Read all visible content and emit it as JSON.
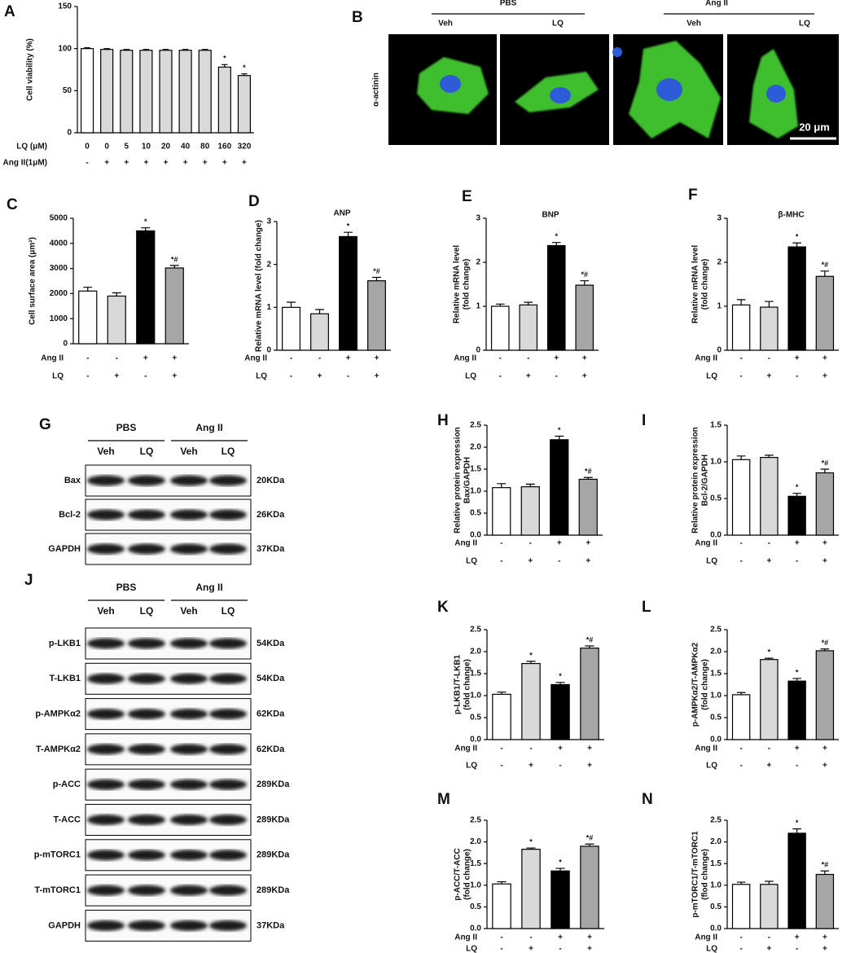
{
  "chart_data": [
    {
      "type": "bar",
      "panel": "A",
      "ylabel": [
        "Cell viability (%)"
      ],
      "ylim": [
        0,
        150
      ],
      "yticks": [
        0,
        50,
        100,
        150
      ],
      "values": [
        100,
        99,
        98,
        98,
        98,
        98,
        98,
        78,
        68
      ],
      "errors": [
        1,
        1,
        1,
        1,
        1,
        1,
        1,
        3,
        2
      ],
      "annotations": [
        null,
        null,
        null,
        null,
        null,
        null,
        null,
        "*",
        "*"
      ],
      "colors": [
        "#ffffff",
        "#d9d9d9",
        "#d9d9d9",
        "#d9d9d9",
        "#d9d9d9",
        "#d9d9d9",
        "#d9d9d9",
        "#d9d9d9",
        "#d9d9d9"
      ],
      "conditions": [
        {
          "name": "LQ (μM)",
          "values": [
            0,
            0,
            5,
            10,
            20,
            40,
            80,
            160,
            320
          ]
        },
        {
          "name": "Ang II(1μM)",
          "values": [
            "-",
            "+",
            "+",
            "+",
            "+",
            "+",
            "+",
            "+",
            "+"
          ]
        }
      ]
    },
    {
      "type": "bar",
      "panel": "C",
      "ylabel": [
        "Cell surface area (μm²)"
      ],
      "ylim": [
        0,
        5000
      ],
      "yticks": [
        0,
        1000,
        2000,
        3000,
        4000,
        5000
      ],
      "values": [
        2100,
        1900,
        4500,
        3020
      ],
      "errors": [
        150,
        130,
        120,
        100
      ],
      "annotations": [
        null,
        null,
        "*",
        "*#"
      ],
      "colors": [
        "#ffffff",
        "#d9d9d9",
        "#000000",
        "#a6a6a6"
      ],
      "conditions": [
        {
          "name": "Ang II",
          "values": [
            "-",
            "-",
            "+",
            "+"
          ]
        },
        {
          "name": "LQ",
          "values": [
            "-",
            "+",
            "-",
            "+"
          ]
        }
      ]
    },
    {
      "type": "bar",
      "panel": "D",
      "title": "ANP",
      "ylabel": [
        "Relative mRNA level (fold change)"
      ],
      "ylim": [
        0,
        3
      ],
      "yticks": [
        0,
        1,
        2,
        3
      ],
      "values": [
        1.0,
        0.85,
        2.65,
        1.62
      ],
      "errors": [
        0.12,
        0.1,
        0.1,
        0.08
      ],
      "annotations": [
        null,
        null,
        "*",
        "*#"
      ],
      "colors": [
        "#ffffff",
        "#d9d9d9",
        "#000000",
        "#a6a6a6"
      ],
      "conditions": [
        {
          "name": "Ang II",
          "values": [
            "-",
            "-",
            "+",
            "+"
          ]
        },
        {
          "name": "LQ",
          "values": [
            "-",
            "+",
            "-",
            "+"
          ]
        }
      ]
    },
    {
      "type": "bar",
      "panel": "E",
      "title": "BNP",
      "ylabel": [
        "Relative mRNA level",
        "(fold change)"
      ],
      "ylim": [
        0,
        3
      ],
      "yticks": [
        0,
        1,
        2,
        3
      ],
      "values": [
        1.0,
        1.03,
        2.38,
        1.48
      ],
      "errors": [
        0.05,
        0.06,
        0.07,
        0.1
      ],
      "annotations": [
        null,
        null,
        "*",
        "*#"
      ],
      "colors": [
        "#ffffff",
        "#d9d9d9",
        "#000000",
        "#a6a6a6"
      ],
      "conditions": [
        {
          "name": "Ang II",
          "values": [
            "-",
            "-",
            "+",
            "+"
          ]
        },
        {
          "name": "LQ",
          "values": [
            "-",
            "+",
            "-",
            "+"
          ]
        }
      ]
    },
    {
      "type": "bar",
      "panel": "F",
      "title": "β-MHC",
      "ylabel": [
        "Relative mRNA level",
        "(fold change)"
      ],
      "ylim": [
        0,
        3
      ],
      "yticks": [
        0,
        1,
        2,
        3
      ],
      "values": [
        1.03,
        0.98,
        2.35,
        1.68
      ],
      "errors": [
        0.12,
        0.13,
        0.09,
        0.12
      ],
      "annotations": [
        null,
        null,
        "*",
        "*#"
      ],
      "colors": [
        "#ffffff",
        "#d9d9d9",
        "#000000",
        "#a6a6a6"
      ],
      "conditions": [
        {
          "name": "Ang II",
          "values": [
            "-",
            "-",
            "+",
            "+"
          ]
        },
        {
          "name": "LQ",
          "values": [
            "-",
            "+",
            "-",
            "+"
          ]
        }
      ]
    },
    {
      "type": "bar",
      "panel": "H",
      "ylabel": [
        "Relative protein expression",
        "Bax/GAPDH"
      ],
      "ylim": [
        0,
        2.5
      ],
      "yticks": [
        {
          "value": 0,
          "label": "0.0"
        },
        {
          "value": 0.5,
          "label": "0.5"
        },
        {
          "value": 1,
          "label": "1.0"
        },
        {
          "value": 1.5,
          "label": "1.5"
        },
        {
          "value": 2,
          "label": "2.0"
        },
        {
          "value": 2.5,
          "label": "2.5"
        }
      ],
      "values": [
        1.08,
        1.1,
        2.17,
        1.27
      ],
      "errors": [
        0.09,
        0.06,
        0.08,
        0.04
      ],
      "annotations": [
        null,
        null,
        "*",
        "*#"
      ],
      "colors": [
        "#ffffff",
        "#d9d9d9",
        "#000000",
        "#a6a6a6"
      ],
      "conditions": [
        {
          "name": "Ang II",
          "values": [
            "-",
            "-",
            "+",
            "+"
          ]
        },
        {
          "name": "LQ",
          "values": [
            "-",
            "+",
            "-",
            "+"
          ]
        }
      ]
    },
    {
      "type": "bar",
      "panel": "I",
      "ylabel": [
        "Relative protein expression",
        "Bcl-2/GAPDH"
      ],
      "ylim": [
        0,
        1.5
      ],
      "yticks": [
        {
          "value": 0,
          "label": "0.0"
        },
        {
          "value": 0.5,
          "label": "0.5"
        },
        {
          "value": 1,
          "label": "1.0"
        },
        {
          "value": 1.5,
          "label": "1.5"
        }
      ],
      "values": [
        1.03,
        1.06,
        0.53,
        0.85
      ],
      "errors": [
        0.05,
        0.03,
        0.04,
        0.05
      ],
      "annotations": [
        null,
        null,
        "*",
        "*#"
      ],
      "colors": [
        "#ffffff",
        "#d9d9d9",
        "#000000",
        "#a6a6a6"
      ],
      "conditions": [
        {
          "name": "Ang II",
          "values": [
            "-",
            "-",
            "+",
            "+"
          ]
        },
        {
          "name": "LQ",
          "values": [
            "-",
            "+",
            "-",
            "+"
          ]
        }
      ]
    },
    {
      "type": "bar",
      "panel": "K",
      "ylabel": [
        "p-LKB1/T-LKB1",
        "(fold change)"
      ],
      "ylim": [
        0,
        2.5
      ],
      "yticks": [
        {
          "value": 0,
          "label": "0.0"
        },
        {
          "value": 0.5,
          "label": "0.5"
        },
        {
          "value": 1,
          "label": "1.0"
        },
        {
          "value": 1.5,
          "label": "1.5"
        },
        {
          "value": 2,
          "label": "2.0"
        },
        {
          "value": 2.5,
          "label": "2.5"
        }
      ],
      "values": [
        1.03,
        1.73,
        1.25,
        2.08
      ],
      "errors": [
        0.05,
        0.05,
        0.05,
        0.05
      ],
      "annotations": [
        null,
        "*",
        "*",
        "*#"
      ],
      "colors": [
        "#ffffff",
        "#d9d9d9",
        "#000000",
        "#a6a6a6"
      ],
      "conditions": [
        {
          "name": "Ang II",
          "values": [
            "-",
            "-",
            "+",
            "+"
          ]
        },
        {
          "name": "LQ",
          "values": [
            "-",
            "+",
            "-",
            "+"
          ]
        }
      ]
    },
    {
      "type": "bar",
      "panel": "L",
      "ylabel": [
        "p-AMPKα2/T-AMPKα2",
        "(fold change)"
      ],
      "ylim": [
        0,
        2.5
      ],
      "yticks": [
        {
          "value": 0,
          "label": "0.0"
        },
        {
          "value": 0.5,
          "label": "0.5"
        },
        {
          "value": 1,
          "label": "1.0"
        },
        {
          "value": 1.5,
          "label": "1.5"
        },
        {
          "value": 2,
          "label": "2.0"
        },
        {
          "value": 2.5,
          "label": "2.5"
        }
      ],
      "values": [
        1.02,
        1.82,
        1.33,
        2.02
      ],
      "errors": [
        0.05,
        0.03,
        0.06,
        0.04
      ],
      "annotations": [
        null,
        "*",
        "*",
        "*#"
      ],
      "colors": [
        "#ffffff",
        "#d9d9d9",
        "#000000",
        "#a6a6a6"
      ],
      "conditions": [
        {
          "name": "Ang II",
          "values": [
            "-",
            "-",
            "+",
            "+"
          ]
        },
        {
          "name": "LQ",
          "values": [
            "-",
            "+",
            "-",
            "+"
          ]
        }
      ]
    },
    {
      "type": "bar",
      "panel": "M",
      "ylabel": [
        "p-ACC/T-ACC",
        "(fold change)"
      ],
      "ylim": [
        0,
        2.5
      ],
      "yticks": [
        {
          "value": 0,
          "label": "0.0"
        },
        {
          "value": 0.5,
          "label": "0.5"
        },
        {
          "value": 1,
          "label": "1.0"
        },
        {
          "value": 1.5,
          "label": "1.5"
        },
        {
          "value": 2,
          "label": "2.0"
        },
        {
          "value": 2.5,
          "label": "2.5"
        }
      ],
      "values": [
        1.03,
        1.83,
        1.33,
        1.9
      ],
      "errors": [
        0.05,
        0.03,
        0.06,
        0.05
      ],
      "annotations": [
        null,
        "*",
        "*",
        "*#"
      ],
      "colors": [
        "#ffffff",
        "#d9d9d9",
        "#000000",
        "#a6a6a6"
      ],
      "conditions": [
        {
          "name": "Ang II",
          "values": [
            "-",
            "-",
            "+",
            "+"
          ]
        },
        {
          "name": "LQ",
          "values": [
            "-",
            "+",
            "-",
            "+"
          ]
        }
      ]
    },
    {
      "type": "bar",
      "panel": "N",
      "ylabel": [
        "p-mTORC1/T-mTORC1",
        "(flod change)"
      ],
      "ylim": [
        0,
        2.5
      ],
      "yticks": [
        {
          "value": 0,
          "label": "0.0"
        },
        {
          "value": 0.5,
          "label": "0.5"
        },
        {
          "value": 1,
          "label": "1.0"
        },
        {
          "value": 1.5,
          "label": "1.5"
        },
        {
          "value": 2,
          "label": "2.0"
        },
        {
          "value": 2.5,
          "label": "2.5"
        }
      ],
      "values": [
        1.02,
        1.02,
        2.2,
        1.25
      ],
      "errors": [
        0.05,
        0.07,
        0.1,
        0.08
      ],
      "annotations": [
        null,
        null,
        "*",
        "*#"
      ],
      "colors": [
        "#ffffff",
        "#d9d9d9",
        "#000000",
        "#a6a6a6"
      ],
      "conditions": [
        {
          "name": "Ang II",
          "values": [
            "-",
            "-",
            "+",
            "+"
          ]
        },
        {
          "name": "LQ",
          "values": [
            "-",
            "+",
            "-",
            "+"
          ]
        }
      ]
    }
  ],
  "panel_b": {
    "panel": "B",
    "groups": [
      "PBS",
      "Ang II"
    ],
    "lanes": [
      "Veh",
      "LQ",
      "Veh",
      "LQ"
    ],
    "stain": "α-actinin",
    "scale": "20 μm"
  },
  "blot_g": {
    "panel": "G",
    "groups": [
      "PBS",
      "Ang II"
    ],
    "lanes": [
      "Veh",
      "LQ",
      "Veh",
      "LQ"
    ],
    "rows": [
      {
        "label": "Bax",
        "size": "20KDa"
      },
      {
        "label": "Bcl-2",
        "size": "26KDa"
      },
      {
        "label": "GAPDH",
        "size": "37KDa"
      }
    ]
  },
  "blot_j": {
    "panel": "J",
    "groups": [
      "PBS",
      "Ang II"
    ],
    "lanes": [
      "Veh",
      "LQ",
      "Veh",
      "LQ"
    ],
    "rows": [
      {
        "label": "p-LKB1",
        "size": "54KDa"
      },
      {
        "label": "T-LKB1",
        "size": "54KDa"
      },
      {
        "label": "p-AMPKα2",
        "size": "62KDa"
      },
      {
        "label": "T-AMPKα2",
        "size": "62KDa"
      },
      {
        "label": "p-ACC",
        "size": "289KDa"
      },
      {
        "label": "T-ACC",
        "size": "289KDa"
      },
      {
        "label": "p-mTORC1",
        "size": "289KDa"
      },
      {
        "label": "T-mTORC1",
        "size": "289KDa"
      },
      {
        "label": "GAPDH",
        "size": "37KDa"
      }
    ]
  }
}
